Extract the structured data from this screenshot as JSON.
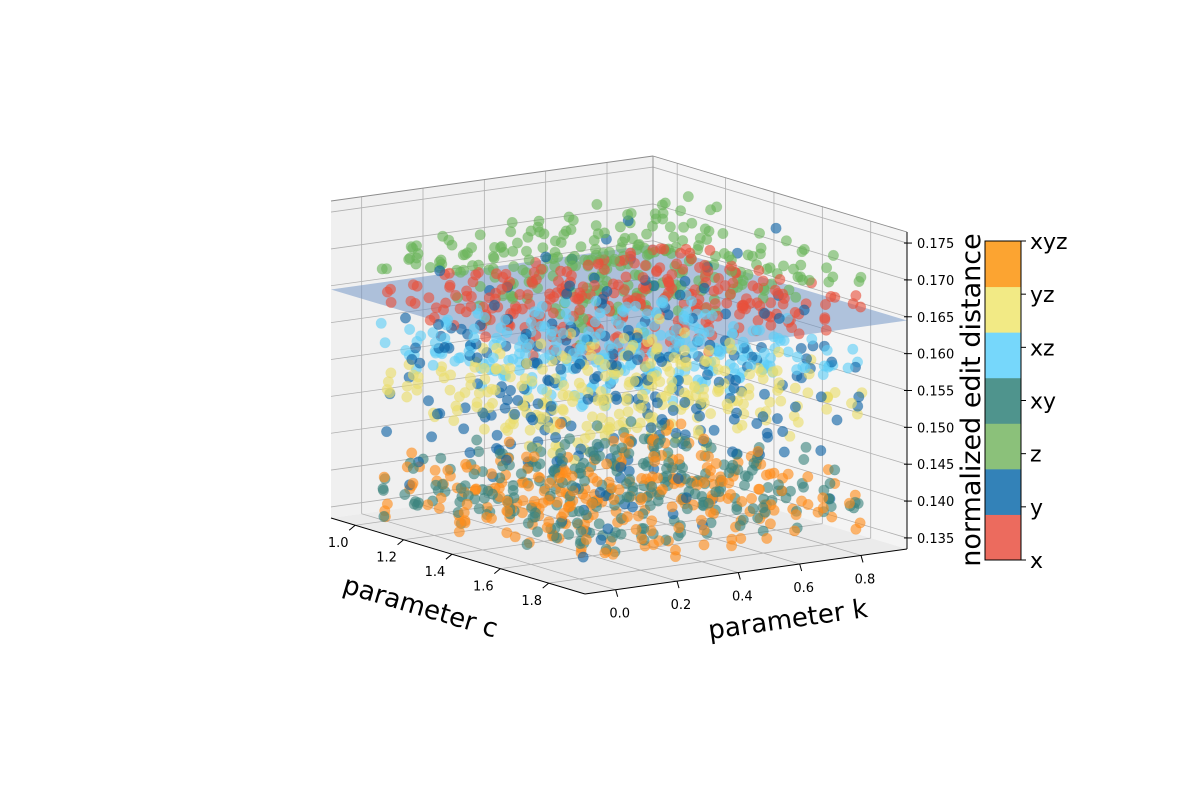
{
  "chart_data": {
    "type": "scatter",
    "subtype": "3d",
    "title": "",
    "xlabel": "parameter c",
    "ylabel": "parameter k",
    "zlabel": "",
    "colorbar_label": "normalized edit distance",
    "xlim": [
      0.9,
      1.95
    ],
    "ylim": [
      -0.1,
      0.95
    ],
    "zlim": [
      0.1335,
      0.1765
    ],
    "x_ticks": [
      1.0,
      1.2,
      1.4,
      1.6,
      1.8
    ],
    "x_tick_labels": [
      "1.0",
      "1.2",
      "1.4",
      "1.6",
      "1.8"
    ],
    "y_ticks": [
      0.0,
      0.2,
      0.4,
      0.6,
      0.8
    ],
    "y_tick_labels": [
      "0.0",
      "0.2",
      "0.4",
      "0.6",
      "0.8"
    ],
    "z_ticks": [
      0.135,
      0.14,
      0.145,
      0.15,
      0.155,
      0.16,
      0.165,
      0.17,
      0.175
    ],
    "z_tick_labels": [
      "0.135",
      "0.140",
      "0.145",
      "0.150",
      "0.155",
      "0.160",
      "0.165",
      "0.170",
      "0.175"
    ],
    "grid": true,
    "surface": {
      "z": 0.1645,
      "color": "#6a8fc4"
    },
    "series": [
      {
        "name": "x",
        "color": "#e8503c",
        "z_center": 0.1645,
        "z_spread": 0.0012
      },
      {
        "name": "y",
        "color": "#0d62a4",
        "z_center": 0.153,
        "z_spread": 0.0075
      },
      {
        "name": "z",
        "color": "#6bb55a",
        "z_center": 0.1695,
        "z_spread": 0.0018
      },
      {
        "name": "xy",
        "color": "#3b857e",
        "z_center": 0.1392,
        "z_spread": 0.0019
      },
      {
        "name": "xz",
        "color": "#5fcff7",
        "z_center": 0.1578,
        "z_spread": 0.0013
      },
      {
        "name": "yz",
        "color": "#eadd6a",
        "z_center": 0.1522,
        "z_spread": 0.002
      },
      {
        "name": "xyz",
        "color": "#ff8c1a",
        "z_center": 0.1384,
        "z_spread": 0.0022
      }
    ],
    "colorbar": {
      "labels": [
        "x",
        "y",
        "z",
        "xy",
        "xz",
        "yz",
        "xyz"
      ],
      "colors": [
        "#ec6b5e",
        "#3382b8",
        "#8bc17a",
        "#4f948d",
        "#76d7fb",
        "#f2ea85",
        "#fca431"
      ]
    }
  }
}
